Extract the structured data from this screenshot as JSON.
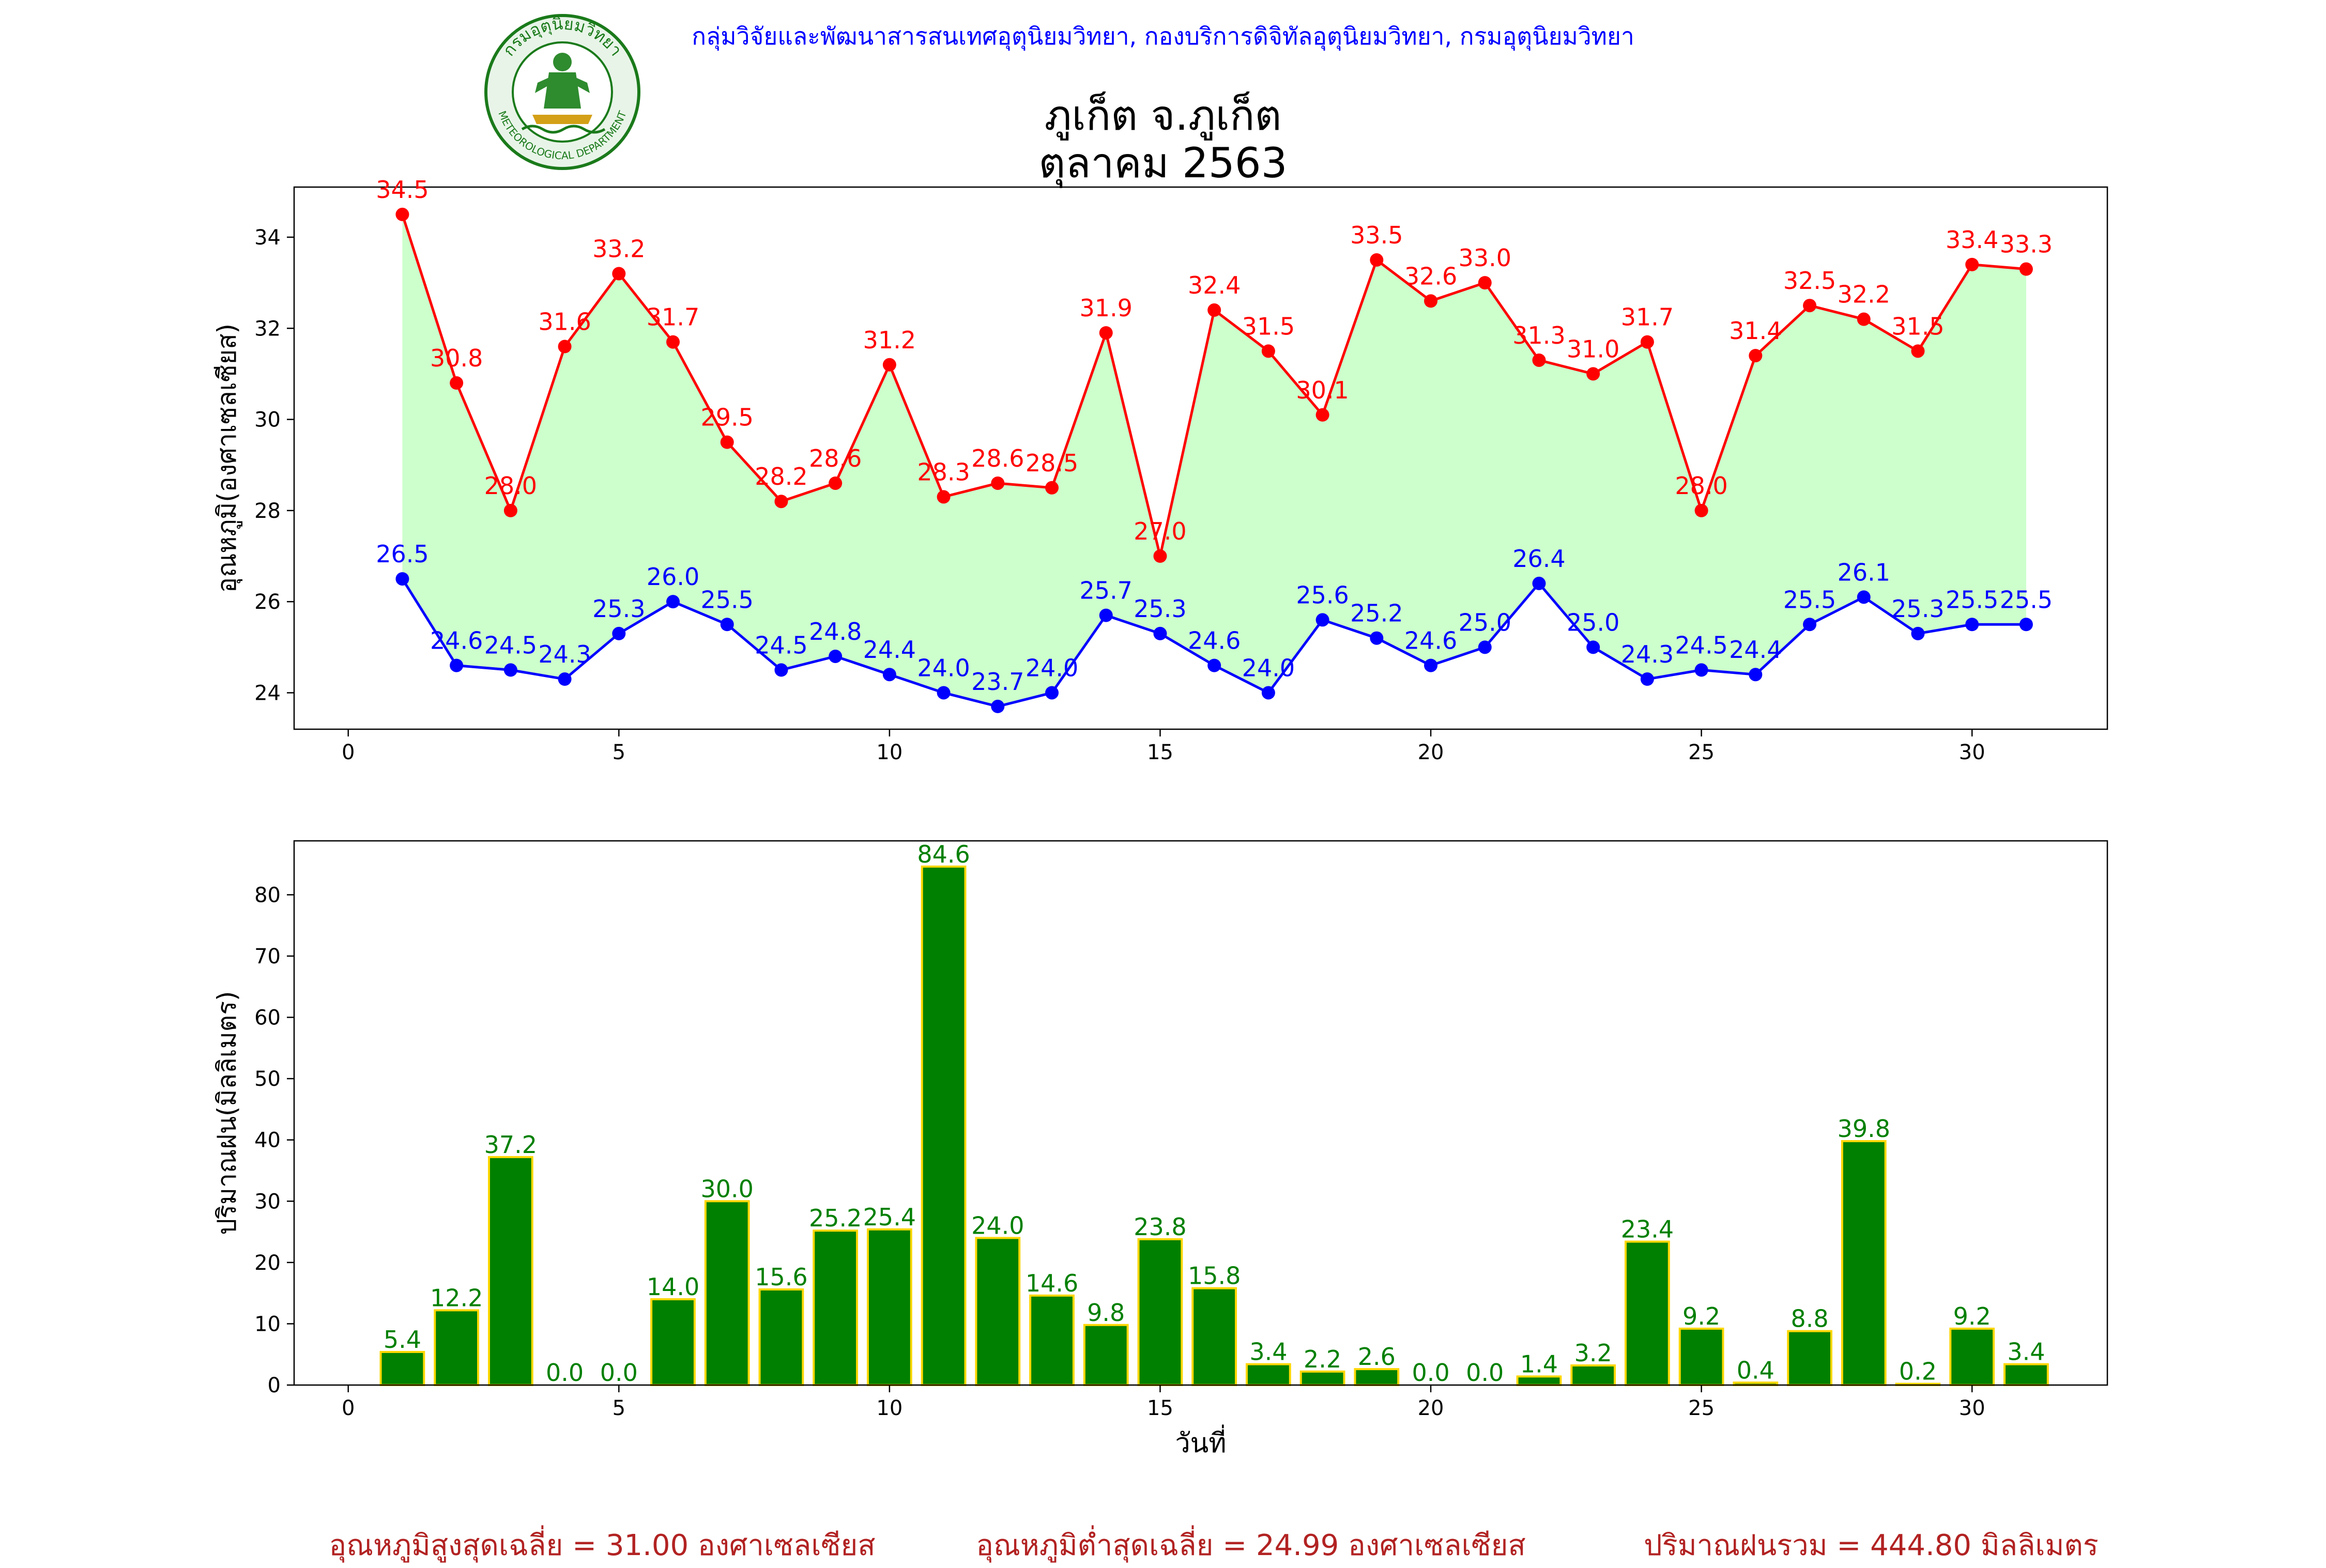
{
  "header": {
    "org_line": "กลุ่มวิจัยและพัฒนาสารสนเทศอุตุนิยมวิทยา, กองบริการดิจิทัลอุตุนิยมวิทยา, กรมอุตุนิยมวิทยา",
    "station": "ภูเก็ต จ.ภูเก็ต",
    "period": "ตุลาคม 2563",
    "logo": {
      "top_text": "กรมอุตุนิยมวิทยา",
      "bottom_text": "METEOROLOGICAL DEPARTMENT",
      "colors": {
        "ring": "#1a7a1a",
        "inner": "#e8f4e8",
        "figure": "#2e8b2e",
        "gold": "#d4a017"
      }
    }
  },
  "chart_data": [
    {
      "type": "line",
      "ylabel": "อุณหภูมิ(องศาเซลเซียส)",
      "xlim": [
        -1,
        32.5
      ],
      "ylim": [
        23.2,
        35.1
      ],
      "xticks": [
        0,
        5,
        10,
        15,
        20,
        25,
        30
      ],
      "yticks": [
        24,
        26,
        28,
        30,
        32,
        34
      ],
      "x": [
        1,
        2,
        3,
        4,
        5,
        6,
        7,
        8,
        9,
        10,
        11,
        12,
        13,
        14,
        15,
        16,
        17,
        18,
        19,
        20,
        21,
        22,
        23,
        24,
        25,
        26,
        27,
        28,
        29,
        30,
        31
      ],
      "series": [
        {
          "id": "max",
          "color": "#ff0000",
          "values": [
            34.5,
            30.8,
            28.0,
            31.6,
            33.2,
            31.7,
            29.5,
            28.2,
            28.6,
            31.2,
            28.3,
            28.6,
            28.5,
            31.9,
            27.0,
            32.4,
            31.5,
            30.1,
            33.5,
            32.6,
            33.0,
            31.3,
            31.0,
            31.7,
            28.0,
            31.4,
            32.5,
            32.2,
            31.5,
            33.4,
            33.3
          ]
        },
        {
          "id": "min",
          "color": "#0000ff",
          "values": [
            26.5,
            24.6,
            24.5,
            24.3,
            25.3,
            26.0,
            25.5,
            24.5,
            24.8,
            24.4,
            24.0,
            23.7,
            24.0,
            25.7,
            25.3,
            24.6,
            24.0,
            25.6,
            25.2,
            24.6,
            25.0,
            26.4,
            25.0,
            24.3,
            24.5,
            24.4,
            25.5,
            26.1,
            25.3,
            25.5,
            25.5
          ]
        }
      ],
      "fill_between_color": "#ccffcc",
      "grid": false
    },
    {
      "type": "bar",
      "xlabel": "วันที่",
      "ylabel": "ปริมาณฝน(มิลลิเมตร)",
      "xlim": [
        -1,
        32.5
      ],
      "ylim": [
        0,
        88.8
      ],
      "xticks": [
        0,
        5,
        10,
        15,
        20,
        25,
        30
      ],
      "yticks": [
        0,
        10,
        20,
        30,
        40,
        50,
        60,
        70,
        80
      ],
      "x": [
        1,
        2,
        3,
        4,
        5,
        6,
        7,
        8,
        9,
        10,
        11,
        12,
        13,
        14,
        15,
        16,
        17,
        18,
        19,
        20,
        21,
        22,
        23,
        24,
        25,
        26,
        27,
        28,
        29,
        30,
        31
      ],
      "values": [
        5.4,
        12.2,
        37.2,
        0.0,
        0.0,
        14.0,
        30.0,
        15.6,
        25.2,
        25.4,
        84.6,
        24.0,
        14.6,
        9.8,
        23.8,
        15.8,
        3.4,
        2.2,
        2.6,
        0.0,
        0.0,
        1.4,
        3.2,
        23.4,
        9.2,
        0.4,
        8.8,
        39.8,
        0.2,
        9.2,
        3.4
      ],
      "bar_color": "#008000",
      "edge_color": "#ffd700",
      "label_color": "#008000",
      "grid": false
    }
  ],
  "footer": {
    "avg_max": "อุณหภูมิสูงสุดเฉลี่ย = 31.00 องศาเซลเซียส",
    "avg_min": "อุณหภูมิต่ำสุดเฉลี่ย = 24.99 องศาเซลเซียส",
    "total_rain": "ปริมาณฝนรวม = 444.80 มิลลิเมตร"
  }
}
